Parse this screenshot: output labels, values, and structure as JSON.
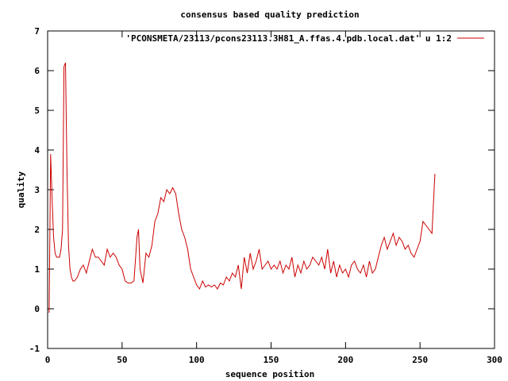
{
  "chart_data": {
    "type": "line",
    "title": "consensus based quality prediction",
    "xlabel": "sequence position",
    "ylabel": "quality",
    "xlim": [
      0,
      300
    ],
    "ylim": [
      -1,
      7
    ],
    "xticks": [
      0,
      50,
      100,
      150,
      200,
      250,
      300
    ],
    "yticks": [
      -1,
      0,
      1,
      2,
      3,
      4,
      5,
      6,
      7
    ],
    "grid": false,
    "legend_position": "top-right",
    "series": [
      {
        "name": "'PCONSMETA/23113/pcons23113.3H81_A.ffas.4.pdb.local.dat' u 1:2",
        "color": "#cc0000",
        "x": [
          1,
          2,
          3,
          4,
          5,
          6,
          7,
          8,
          9,
          10,
          11,
          12,
          13,
          14,
          15,
          16,
          17,
          18,
          19,
          20,
          22,
          24,
          26,
          28,
          30,
          32,
          34,
          36,
          38,
          40,
          42,
          44,
          46,
          48,
          50,
          52,
          54,
          56,
          58,
          60,
          61,
          62,
          64,
          66,
          68,
          70,
          72,
          74,
          76,
          78,
          80,
          82,
          84,
          86,
          88,
          90,
          92,
          94,
          96,
          98,
          100,
          102,
          104,
          106,
          108,
          110,
          112,
          114,
          116,
          118,
          120,
          122,
          124,
          126,
          128,
          130,
          132,
          134,
          136,
          138,
          140,
          142,
          144,
          146,
          148,
          150,
          152,
          154,
          156,
          158,
          160,
          162,
          164,
          166,
          168,
          170,
          172,
          174,
          176,
          178,
          180,
          182,
          184,
          186,
          188,
          190,
          192,
          194,
          196,
          198,
          200,
          202,
          204,
          206,
          208,
          210,
          212,
          214,
          216,
          218,
          220,
          222,
          224,
          226,
          228,
          230,
          232,
          234,
          236,
          238,
          240,
          242,
          244,
          246,
          248,
          250,
          252,
          254,
          256,
          258,
          260
        ],
        "y": [
          -0.1,
          3.9,
          2.8,
          1.8,
          1.4,
          1.3,
          1.3,
          1.3,
          1.5,
          2.0,
          6.1,
          6.2,
          3.5,
          1.6,
          1.0,
          0.8,
          0.7,
          0.7,
          0.75,
          0.8,
          1.0,
          1.1,
          0.9,
          1.2,
          1.5,
          1.3,
          1.3,
          1.2,
          1.1,
          1.5,
          1.3,
          1.4,
          1.3,
          1.1,
          1.0,
          0.7,
          0.65,
          0.65,
          0.7,
          1.8,
          2.0,
          1.0,
          0.65,
          1.4,
          1.3,
          1.6,
          2.2,
          2.4,
          2.8,
          2.7,
          3.0,
          2.9,
          3.05,
          2.9,
          2.4,
          2.0,
          1.8,
          1.5,
          1.0,
          0.8,
          0.6,
          0.5,
          0.7,
          0.55,
          0.6,
          0.55,
          0.6,
          0.5,
          0.65,
          0.6,
          0.8,
          0.7,
          0.9,
          0.8,
          1.1,
          0.5,
          1.3,
          0.9,
          1.4,
          1.0,
          1.2,
          1.5,
          1.0,
          1.1,
          1.2,
          1.0,
          1.1,
          1.0,
          1.2,
          0.9,
          1.1,
          1.0,
          1.3,
          0.8,
          1.1,
          0.9,
          1.2,
          1.0,
          1.1,
          1.3,
          1.2,
          1.1,
          1.3,
          1.0,
          1.5,
          0.9,
          1.2,
          0.8,
          1.1,
          0.9,
          1.0,
          0.8,
          1.1,
          1.2,
          1.0,
          0.9,
          1.1,
          0.8,
          1.2,
          0.9,
          1.0,
          1.3,
          1.6,
          1.8,
          1.5,
          1.7,
          1.9,
          1.6,
          1.8,
          1.7,
          1.5,
          1.6,
          1.4,
          1.3,
          1.5,
          1.7,
          2.2,
          2.1,
          2.0,
          1.9,
          3.4
        ]
      }
    ]
  }
}
